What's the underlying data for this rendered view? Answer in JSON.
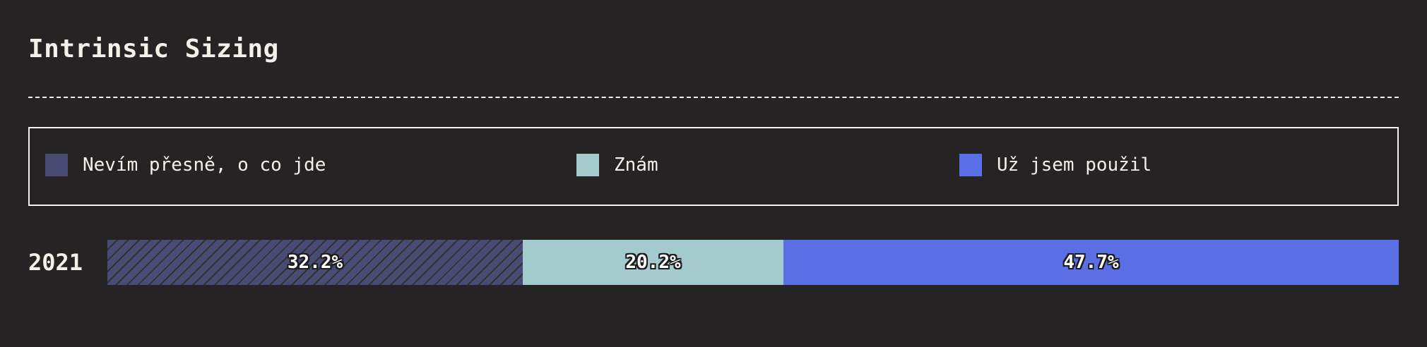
{
  "title": "Intrinsic Sizing",
  "chart_data": {
    "type": "bar",
    "orientation": "horizontal",
    "stacked": true,
    "normalized_percent": true,
    "categories": [
      "2021"
    ],
    "series": [
      {
        "name": "Nevím přesně, o co jde",
        "values": [
          32.2
        ],
        "label": "32.2%",
        "color": "#484c74",
        "pattern": "diagonal-hatch"
      },
      {
        "name": "Znám",
        "values": [
          20.2
        ],
        "label": "20.2%",
        "color": "#a3cbce"
      },
      {
        "name": "Už jsem použil",
        "values": [
          47.7
        ],
        "label": "47.7%",
        "color": "#5a6ee6"
      }
    ],
    "legend_position": "top",
    "grid": false
  },
  "colors": {
    "background": "#262325",
    "foreground": "#f4f1ea"
  }
}
